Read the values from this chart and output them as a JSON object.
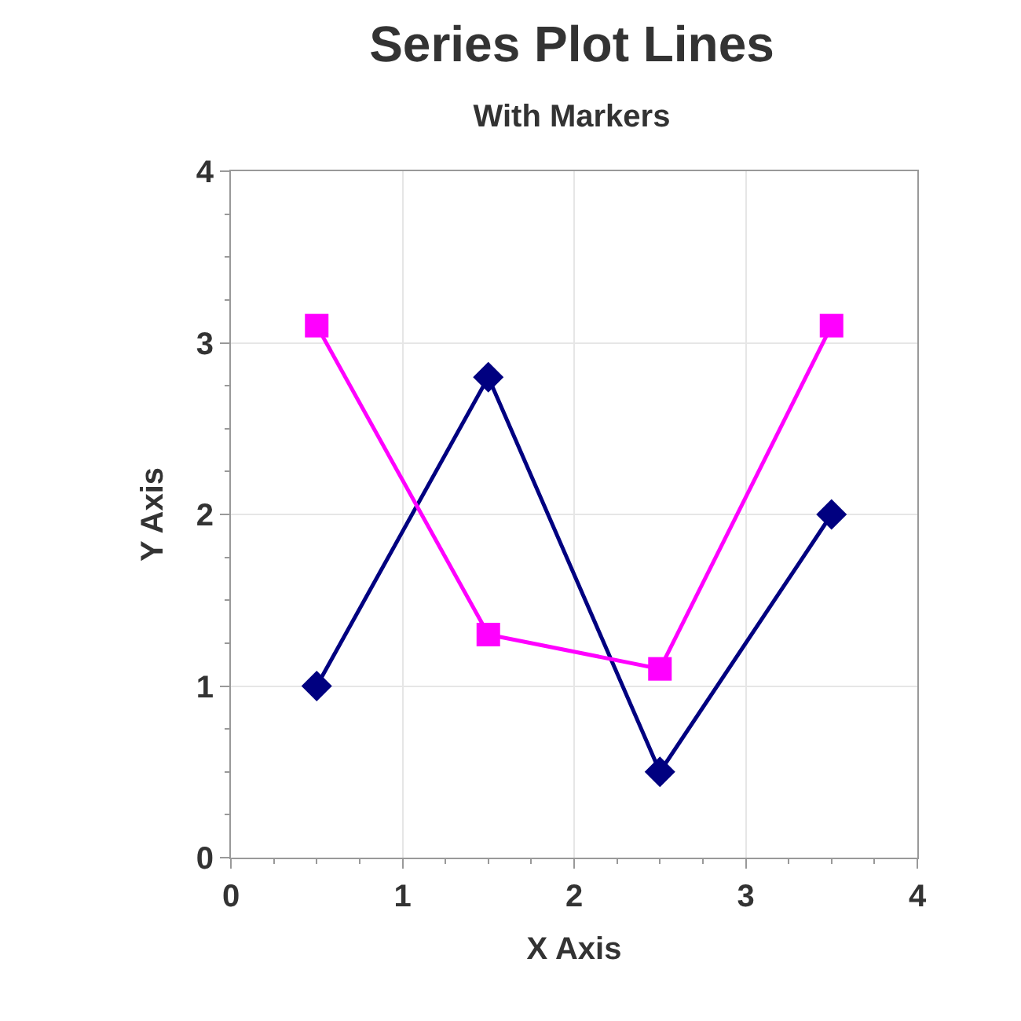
{
  "chart_data": {
    "type": "line",
    "title": "Series Plot Lines",
    "subtitle": "With Markers",
    "xlabel": "X Axis",
    "ylabel": "Y Axis",
    "x": [
      0.5,
      1.5,
      2.5,
      3.5
    ],
    "series": [
      {
        "color": "#000080",
        "marker": "diamond",
        "values": [
          1,
          2.8,
          0.5,
          2
        ]
      },
      {
        "color": "#ff00ff",
        "marker": "square",
        "values": [
          3.1,
          1.3,
          1.1,
          3.1
        ]
      }
    ],
    "xlim": [
      0,
      4
    ],
    "ylim": [
      0,
      4
    ],
    "xticks": [
      0,
      1,
      2,
      3,
      4
    ],
    "yticks": [
      0,
      1,
      2,
      3,
      4
    ],
    "grid": true,
    "line_style": "solid"
  }
}
